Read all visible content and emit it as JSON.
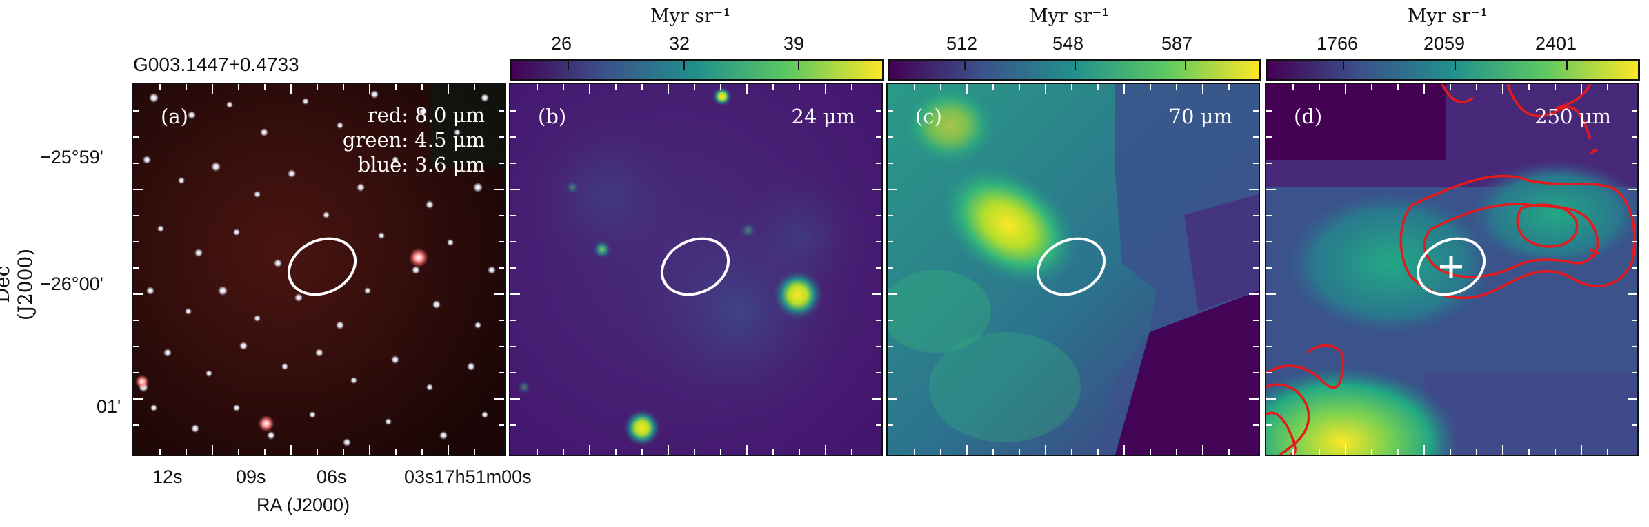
{
  "title": "G003.1447+0.4733",
  "axes": {
    "ylabel": "Dec (J2000)",
    "xlabel": "RA (J2000)",
    "dec_ticks": [
      "−25°59'",
      "−26°00'",
      "01'"
    ],
    "ra_ticks": [
      "12s",
      "09s",
      "06s",
      "03s17h51m00s"
    ]
  },
  "panels": [
    {
      "id": "a",
      "label": "(a)",
      "legend": [
        "red: 8.0 μm",
        "green: 4.5 μm",
        "blue: 3.6 μm"
      ]
    },
    {
      "id": "b",
      "label": "(b)",
      "band": "24 μm",
      "colorbar": {
        "title": "Myr sr⁻¹",
        "ticks": [
          "26",
          "32",
          "39"
        ]
      }
    },
    {
      "id": "c",
      "label": "(c)",
      "band": "70 μm",
      "colorbar": {
        "title": "Myr sr⁻¹",
        "ticks": [
          "512",
          "548",
          "587"
        ]
      }
    },
    {
      "id": "d",
      "label": "(d)",
      "band": "250 μm",
      "colorbar": {
        "title": "Myr sr⁻¹",
        "ticks": [
          "1766",
          "2059",
          "2401"
        ]
      }
    }
  ],
  "colors": {
    "viridis_low": "#440154",
    "viridis_mid": "#21918c",
    "viridis_high": "#fde725",
    "contour": "#e41a1c",
    "ellipse": "#ffffff"
  }
}
